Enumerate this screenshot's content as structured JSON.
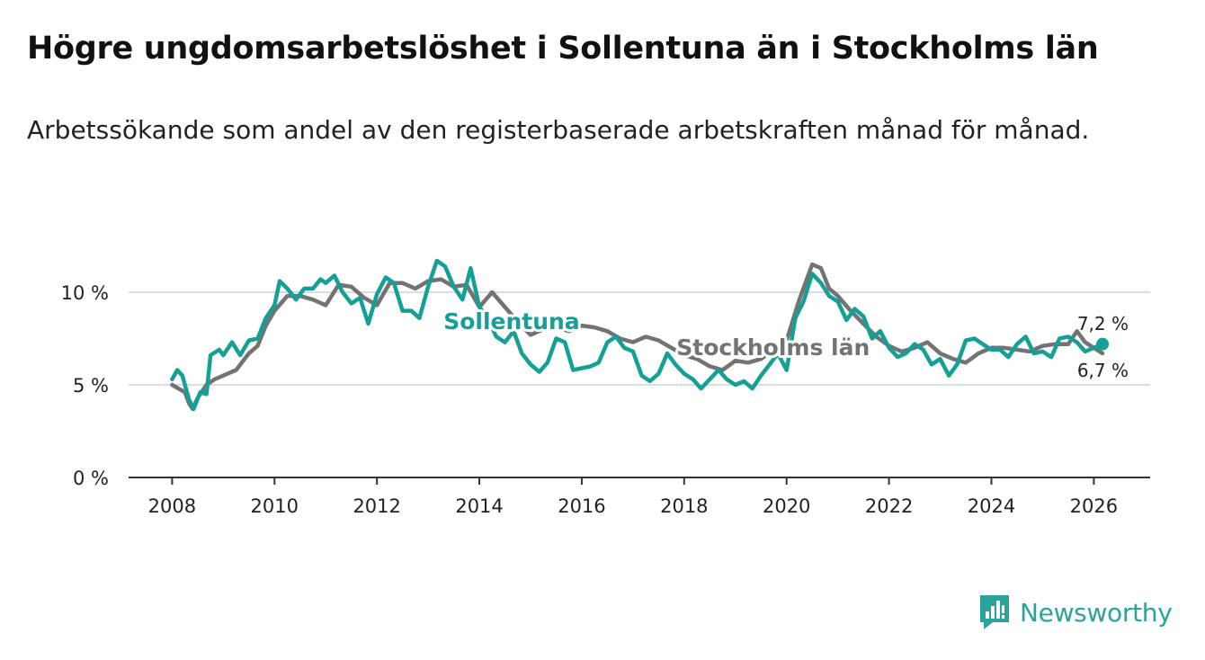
{
  "header": {
    "title": "Högre ungdomsarbetslöshet i Sollentuna än i Stockholms län",
    "subtitle": "Arbetssökande som andel av den registerbaserade arbetskraften månad för månad."
  },
  "branding": {
    "name": "Newsworthy",
    "icon": "newsworthy-logo-icon",
    "color": "#2ba39a"
  },
  "chart_data": {
    "type": "line",
    "title": "Högre ungdomsarbetslöshet i Sollentuna än i Stockholms län",
    "subtitle": "Arbetssökande som andel av den registerbaserade arbetskraften månad för månad.",
    "xlabel": "",
    "ylabel": "",
    "xlim": [
      2007.15,
      2027.1
    ],
    "ylim": [
      0,
      12
    ],
    "x_ticks": [
      2008,
      2010,
      2012,
      2014,
      2016,
      2018,
      2020,
      2022,
      2024,
      2026
    ],
    "x_tick_labels": [
      "2008",
      "2010",
      "2012",
      "2014",
      "2016",
      "2018",
      "2020",
      "2022",
      "2024",
      "2026"
    ],
    "y_ticks": [
      0,
      5,
      10
    ],
    "y_tick_labels": [
      "0 %",
      "5 %",
      "10 %"
    ],
    "grid": "horizontal",
    "legend": "inline labels",
    "series": [
      {
        "name": "Stockholms län",
        "color": "#737373",
        "label_at": [
          2017.85,
          6.6
        ],
        "end_label": "6,7 %",
        "points": [
          [
            2008.0,
            5.0
          ],
          [
            2008.25,
            4.6
          ],
          [
            2008.33,
            4.0
          ],
          [
            2008.4,
            3.7
          ],
          [
            2008.5,
            4.3
          ],
          [
            2008.67,
            5.0
          ],
          [
            2008.83,
            5.3
          ],
          [
            2009.0,
            5.5
          ],
          [
            2009.25,
            5.8
          ],
          [
            2009.5,
            6.7
          ],
          [
            2009.67,
            7.1
          ],
          [
            2009.83,
            8.2
          ],
          [
            2010.0,
            9.0
          ],
          [
            2010.25,
            9.8
          ],
          [
            2010.5,
            9.8
          ],
          [
            2010.75,
            9.6
          ],
          [
            2011.0,
            9.3
          ],
          [
            2011.25,
            10.4
          ],
          [
            2011.5,
            10.3
          ],
          [
            2011.75,
            9.7
          ],
          [
            2012.0,
            9.3
          ],
          [
            2012.25,
            10.5
          ],
          [
            2012.5,
            10.5
          ],
          [
            2012.75,
            10.2
          ],
          [
            2013.0,
            10.6
          ],
          [
            2013.25,
            10.7
          ],
          [
            2013.5,
            10.3
          ],
          [
            2013.75,
            10.4
          ],
          [
            2014.0,
            9.2
          ],
          [
            2014.25,
            10.0
          ],
          [
            2014.5,
            9.2
          ],
          [
            2014.75,
            8.4
          ],
          [
            2015.0,
            7.7
          ],
          [
            2015.25,
            8.0
          ],
          [
            2015.5,
            8.1
          ],
          [
            2015.75,
            7.9
          ],
          [
            2016.0,
            8.2
          ],
          [
            2016.25,
            8.1
          ],
          [
            2016.5,
            7.9
          ],
          [
            2016.75,
            7.5
          ],
          [
            2017.0,
            7.3
          ],
          [
            2017.25,
            7.6
          ],
          [
            2017.5,
            7.4
          ],
          [
            2017.75,
            7.0
          ],
          [
            2018.0,
            6.6
          ],
          [
            2018.25,
            6.4
          ],
          [
            2018.5,
            6.0
          ],
          [
            2018.75,
            5.8
          ],
          [
            2019.0,
            6.3
          ],
          [
            2019.25,
            6.2
          ],
          [
            2019.5,
            6.4
          ],
          [
            2019.75,
            6.9
          ],
          [
            2020.0,
            7.4
          ],
          [
            2020.25,
            9.6
          ],
          [
            2020.5,
            11.5
          ],
          [
            2020.67,
            11.3
          ],
          [
            2020.83,
            10.2
          ],
          [
            2021.0,
            9.8
          ],
          [
            2021.25,
            9.0
          ],
          [
            2021.5,
            8.3
          ],
          [
            2021.75,
            7.6
          ],
          [
            2022.0,
            7.1
          ],
          [
            2022.25,
            6.8
          ],
          [
            2022.5,
            7.0
          ],
          [
            2022.75,
            7.3
          ],
          [
            2023.0,
            6.7
          ],
          [
            2023.25,
            6.4
          ],
          [
            2023.5,
            6.2
          ],
          [
            2023.75,
            6.7
          ],
          [
            2024.0,
            7.0
          ],
          [
            2024.25,
            7.0
          ],
          [
            2024.5,
            6.9
          ],
          [
            2024.75,
            6.8
          ],
          [
            2025.0,
            7.1
          ],
          [
            2025.25,
            7.2
          ],
          [
            2025.5,
            7.2
          ],
          [
            2025.67,
            7.9
          ],
          [
            2025.83,
            7.3
          ],
          [
            2026.0,
            7.0
          ],
          [
            2026.17,
            6.7
          ]
        ]
      },
      {
        "name": "Sollentuna",
        "color": "#14a096",
        "label_at": [
          2013.3,
          8.0
        ],
        "end_label": "7,2 %",
        "points": [
          [
            2008.0,
            5.3
          ],
          [
            2008.1,
            5.8
          ],
          [
            2008.2,
            5.5
          ],
          [
            2008.33,
            4.2
          ],
          [
            2008.42,
            3.7
          ],
          [
            2008.55,
            4.6
          ],
          [
            2008.67,
            4.5
          ],
          [
            2008.75,
            6.6
          ],
          [
            2008.92,
            6.9
          ],
          [
            2009.0,
            6.6
          ],
          [
            2009.17,
            7.3
          ],
          [
            2009.33,
            6.6
          ],
          [
            2009.5,
            7.4
          ],
          [
            2009.67,
            7.5
          ],
          [
            2009.83,
            8.6
          ],
          [
            2010.0,
            9.3
          ],
          [
            2010.1,
            10.6
          ],
          [
            2010.25,
            10.2
          ],
          [
            2010.42,
            9.6
          ],
          [
            2010.58,
            10.2
          ],
          [
            2010.75,
            10.2
          ],
          [
            2010.9,
            10.7
          ],
          [
            2011.0,
            10.5
          ],
          [
            2011.17,
            10.9
          ],
          [
            2011.33,
            10.0
          ],
          [
            2011.5,
            9.4
          ],
          [
            2011.67,
            9.7
          ],
          [
            2011.83,
            8.3
          ],
          [
            2012.0,
            9.9
          ],
          [
            2012.17,
            10.8
          ],
          [
            2012.33,
            10.5
          ],
          [
            2012.5,
            9.0
          ],
          [
            2012.67,
            9.0
          ],
          [
            2012.83,
            8.6
          ],
          [
            2013.0,
            10.3
          ],
          [
            2013.17,
            11.7
          ],
          [
            2013.33,
            11.4
          ],
          [
            2013.5,
            10.3
          ],
          [
            2013.67,
            9.6
          ],
          [
            2013.83,
            11.3
          ],
          [
            2014.0,
            9.2
          ],
          [
            2014.17,
            8.6
          ],
          [
            2014.33,
            7.6
          ],
          [
            2014.5,
            7.3
          ],
          [
            2014.67,
            7.9
          ],
          [
            2014.83,
            6.7
          ],
          [
            2015.0,
            6.1
          ],
          [
            2015.17,
            5.7
          ],
          [
            2015.33,
            6.2
          ],
          [
            2015.5,
            7.5
          ],
          [
            2015.67,
            7.3
          ],
          [
            2015.83,
            5.8
          ],
          [
            2016.0,
            5.9
          ],
          [
            2016.17,
            6.0
          ],
          [
            2016.33,
            6.2
          ],
          [
            2016.5,
            7.3
          ],
          [
            2016.67,
            7.6
          ],
          [
            2016.83,
            7.0
          ],
          [
            2017.0,
            6.8
          ],
          [
            2017.17,
            5.5
          ],
          [
            2017.33,
            5.2
          ],
          [
            2017.5,
            5.6
          ],
          [
            2017.67,
            6.7
          ],
          [
            2017.83,
            6.1
          ],
          [
            2018.0,
            5.6
          ],
          [
            2018.17,
            5.3
          ],
          [
            2018.33,
            4.8
          ],
          [
            2018.5,
            5.3
          ],
          [
            2018.67,
            5.8
          ],
          [
            2018.83,
            5.3
          ],
          [
            2019.0,
            5.0
          ],
          [
            2019.17,
            5.2
          ],
          [
            2019.33,
            4.8
          ],
          [
            2019.5,
            5.5
          ],
          [
            2019.67,
            6.1
          ],
          [
            2019.83,
            6.7
          ],
          [
            2020.0,
            5.8
          ],
          [
            2020.17,
            8.6
          ],
          [
            2020.33,
            9.5
          ],
          [
            2020.5,
            11.0
          ],
          [
            2020.67,
            10.5
          ],
          [
            2020.83,
            9.8
          ],
          [
            2021.0,
            9.5
          ],
          [
            2021.17,
            8.5
          ],
          [
            2021.33,
            9.1
          ],
          [
            2021.5,
            8.7
          ],
          [
            2021.67,
            7.5
          ],
          [
            2021.83,
            7.9
          ],
          [
            2022.0,
            7.0
          ],
          [
            2022.17,
            6.5
          ],
          [
            2022.33,
            6.7
          ],
          [
            2022.5,
            7.2
          ],
          [
            2022.67,
            6.9
          ],
          [
            2022.83,
            6.1
          ],
          [
            2023.0,
            6.4
          ],
          [
            2023.17,
            5.5
          ],
          [
            2023.33,
            6.1
          ],
          [
            2023.5,
            7.4
          ],
          [
            2023.67,
            7.5
          ],
          [
            2023.83,
            7.2
          ],
          [
            2024.0,
            6.9
          ],
          [
            2024.17,
            6.9
          ],
          [
            2024.33,
            6.5
          ],
          [
            2024.5,
            7.2
          ],
          [
            2024.67,
            7.6
          ],
          [
            2024.83,
            6.7
          ],
          [
            2025.0,
            6.8
          ],
          [
            2025.17,
            6.5
          ],
          [
            2025.33,
            7.5
          ],
          [
            2025.5,
            7.6
          ],
          [
            2025.67,
            7.3
          ],
          [
            2025.83,
            6.8
          ],
          [
            2026.0,
            7.0
          ],
          [
            2026.17,
            7.2
          ]
        ]
      }
    ]
  }
}
